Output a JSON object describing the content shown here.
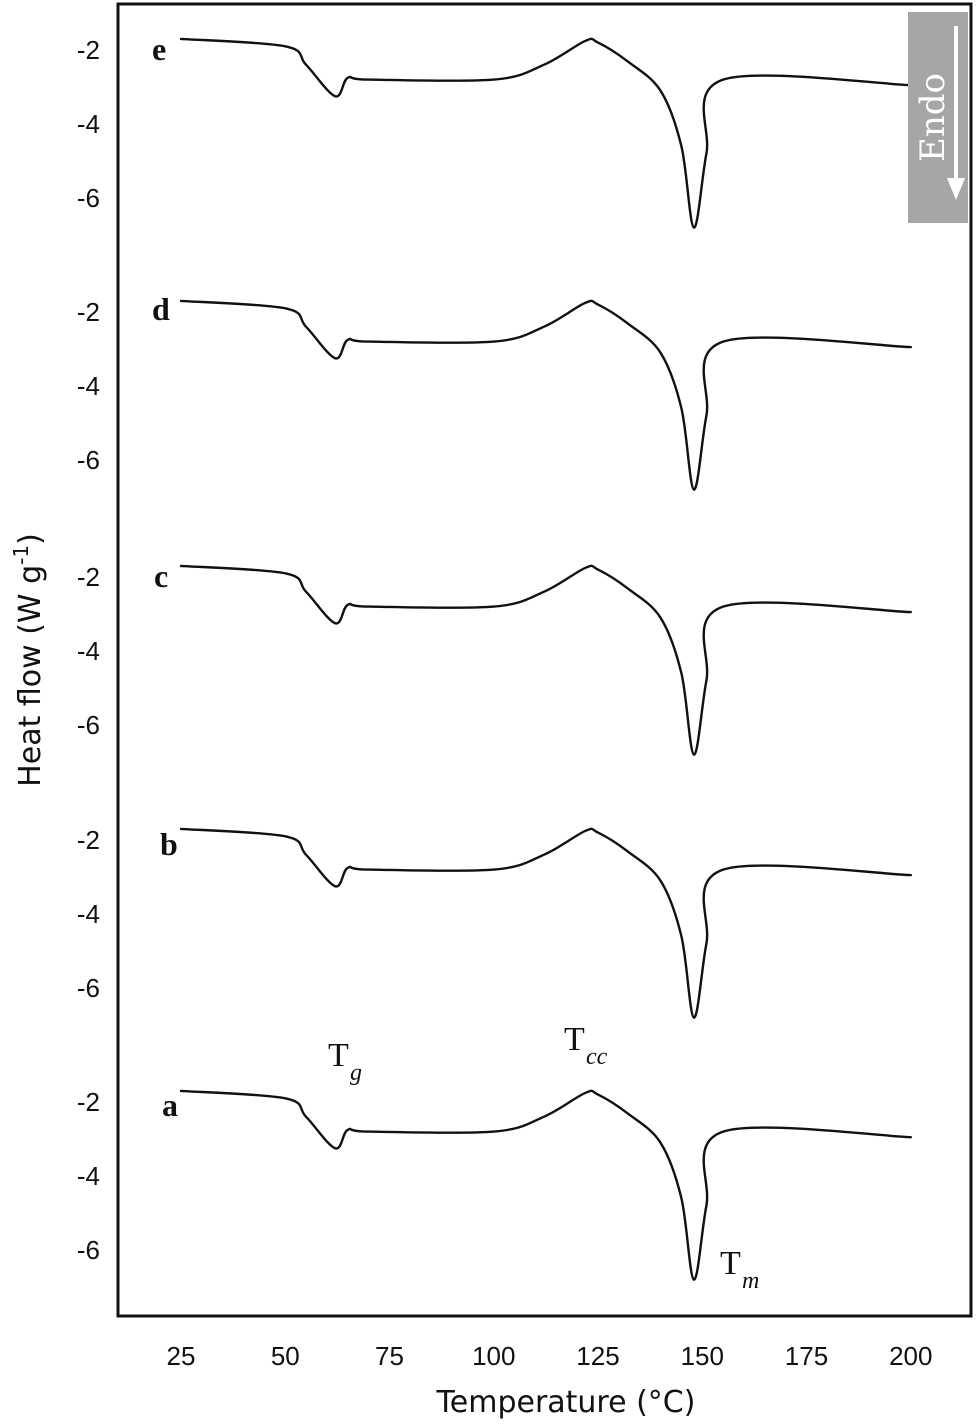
{
  "chart_data": {
    "type": "line",
    "xlabel": "Temperature (°C)",
    "ylabel": "Heat flow (W g",
    "ylabel_superscript": "-1",
    "ylabel_close": ")",
    "xlim": [
      25,
      200
    ],
    "x_ticks": [
      25,
      50,
      75,
      100,
      125,
      150,
      175,
      200
    ],
    "y_ticks": [
      -2,
      -4,
      -6
    ],
    "grid": false,
    "annotations": {
      "tg_main": "T",
      "tg_sub": "g",
      "tcc_main": "T",
      "tcc_sub": "cc",
      "tm_main": "T",
      "tm_sub": "m"
    },
    "endo_label": "Endo",
    "series": [
      {
        "name": "a",
        "x": [
          25,
          50,
          55,
          62,
          65,
          70,
          100,
          112,
          122,
          125,
          132,
          140,
          145,
          148,
          151,
          155,
          200
        ],
        "y": [
          -1.7,
          -1.9,
          -2.4,
          -3.25,
          -2.75,
          -2.8,
          -2.8,
          -2.4,
          -1.75,
          -1.8,
          -2.3,
          -3.1,
          -4.6,
          -6.8,
          -4.8,
          -2.8,
          -2.95
        ]
      },
      {
        "name": "b",
        "x": [
          25,
          50,
          55,
          62,
          65,
          70,
          100,
          112,
          122,
          125,
          132,
          140,
          145,
          148,
          151,
          155,
          200
        ],
        "y": [
          -1.7,
          -1.9,
          -2.4,
          -3.25,
          -2.75,
          -2.8,
          -2.8,
          -2.4,
          -1.75,
          -1.8,
          -2.3,
          -3.1,
          -4.6,
          -6.8,
          -4.8,
          -2.8,
          -2.95
        ]
      },
      {
        "name": "c",
        "x": [
          25,
          50,
          55,
          62,
          65,
          70,
          100,
          112,
          122,
          125,
          132,
          140,
          145,
          148,
          151,
          155,
          200
        ],
        "y": [
          -1.7,
          -1.9,
          -2.4,
          -3.25,
          -2.75,
          -2.8,
          -2.8,
          -2.4,
          -1.75,
          -1.8,
          -2.3,
          -3.1,
          -4.6,
          -6.8,
          -4.8,
          -2.8,
          -2.95
        ]
      },
      {
        "name": "d",
        "x": [
          25,
          50,
          55,
          62,
          65,
          70,
          100,
          112,
          122,
          125,
          132,
          140,
          145,
          148,
          151,
          155,
          200
        ],
        "y": [
          -1.7,
          -1.9,
          -2.4,
          -3.25,
          -2.75,
          -2.8,
          -2.8,
          -2.4,
          -1.75,
          -1.8,
          -2.3,
          -3.1,
          -4.6,
          -6.8,
          -4.8,
          -2.8,
          -2.95
        ]
      },
      {
        "name": "e",
        "x": [
          25,
          50,
          55,
          62,
          65,
          70,
          100,
          112,
          122,
          125,
          132,
          140,
          145,
          148,
          151,
          155,
          200
        ],
        "y": [
          -1.7,
          -1.9,
          -2.4,
          -3.25,
          -2.75,
          -2.8,
          -2.8,
          -2.4,
          -1.75,
          -1.8,
          -2.3,
          -3.1,
          -4.6,
          -6.8,
          -4.8,
          -2.8,
          -2.95
        ]
      }
    ]
  }
}
